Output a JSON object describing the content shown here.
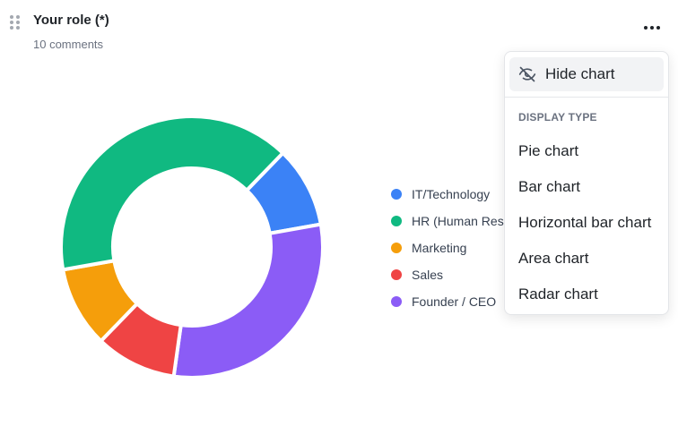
{
  "card": {
    "title": "Your role (*)",
    "subtitle": "10 comments"
  },
  "icons": {
    "drag": "drag-handle-icon",
    "more": "more-horizontal-icon",
    "hide": "eye-off-icon"
  },
  "chart_data": {
    "type": "pie",
    "variant": "donut",
    "legend_placement": "right",
    "categories": [
      "IT/Technology",
      "HR (Human Resources)",
      "Marketing",
      "Sales",
      "Founder / CEO"
    ],
    "values": [
      1,
      4,
      1,
      1,
      3
    ],
    "colors": [
      "#3b82f6",
      "#10b981",
      "#f59e0b",
      "#ef4444",
      "#8b5cf6"
    ],
    "legend_labels": [
      "IT/Technology",
      "HR (Human Res",
      "Marketing",
      "Sales",
      "Founder / CEO"
    ]
  },
  "menu": {
    "hide_label": "Hide chart",
    "section_label": "DISPLAY TYPE",
    "options": [
      "Pie chart",
      "Bar chart",
      "Horizontal bar chart",
      "Area chart",
      "Radar chart"
    ]
  }
}
